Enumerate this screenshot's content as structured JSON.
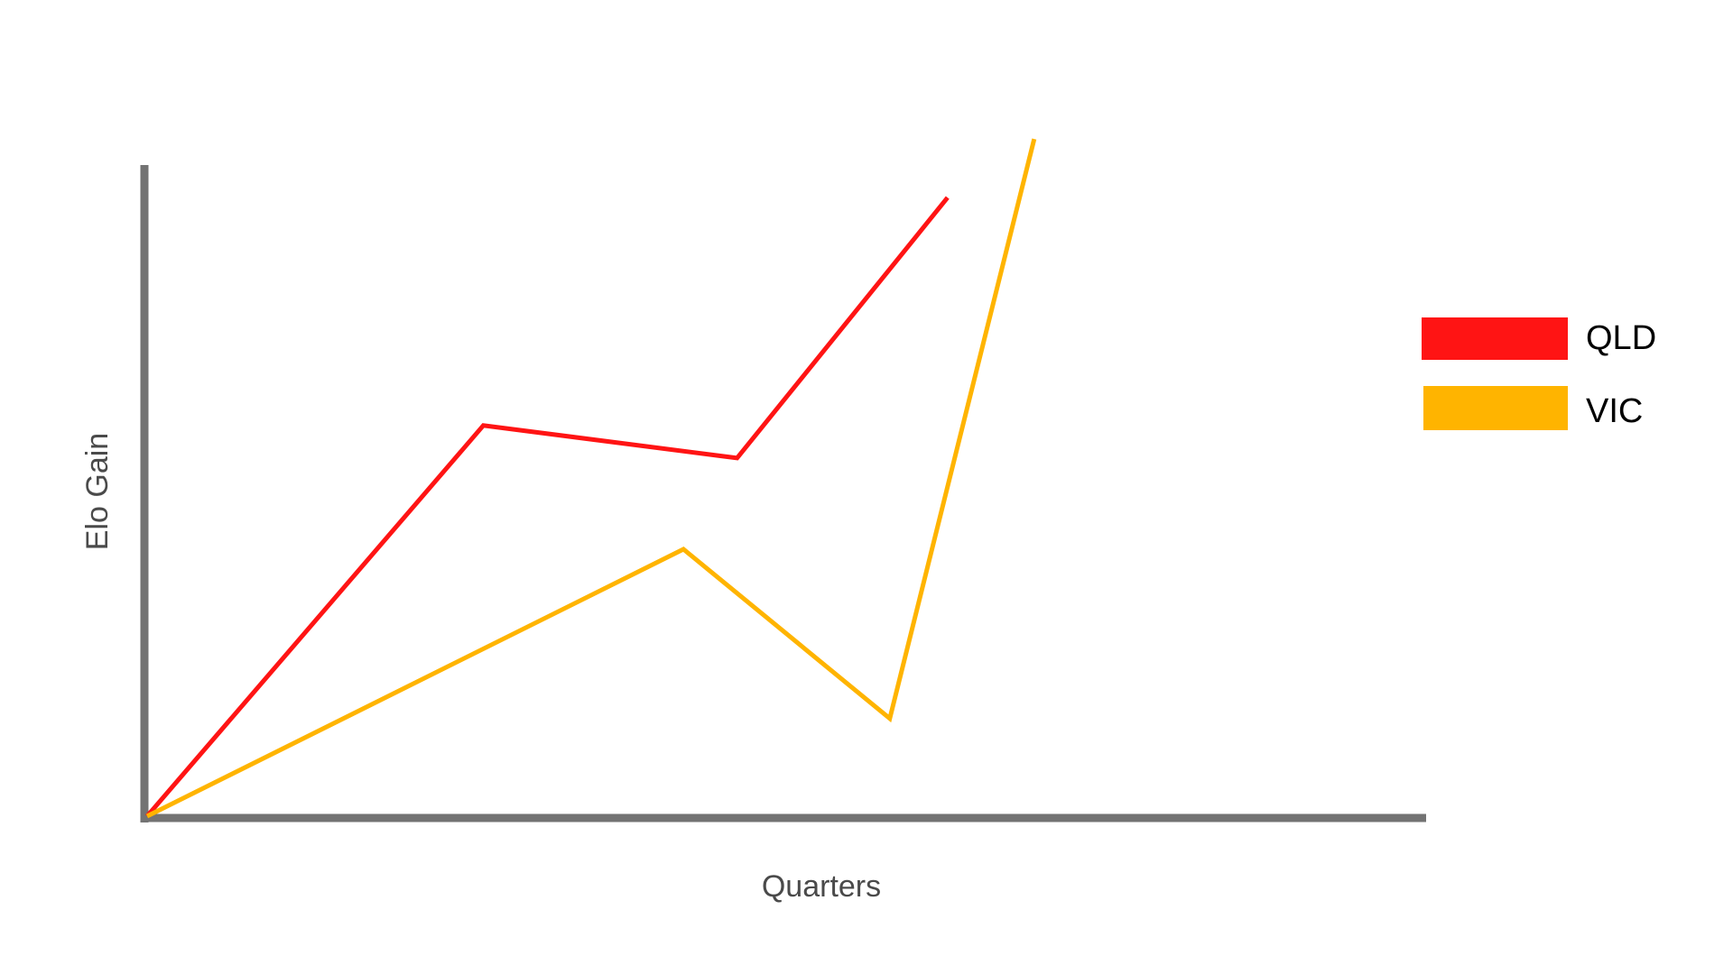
{
  "chart_data": {
    "type": "line",
    "title": "",
    "xlabel": "Quarters",
    "ylabel": "Elo Gain",
    "x": [
      0,
      1,
      2,
      3,
      4
    ],
    "xlim": [
      0,
      6.2
    ],
    "ylim": [
      0,
      100
    ],
    "grid": false,
    "legend_position": "right",
    "series": [
      {
        "name": "QLD",
        "color": "#ff1414",
        "x": [
          0,
          1.63,
          2.86,
          3.88
        ],
        "values": [
          0,
          60,
          55,
          95
        ]
      },
      {
        "name": "VIC",
        "color": "#ffb400",
        "x": [
          0,
          2.6,
          3.6,
          4.3
        ],
        "values": [
          0,
          41,
          15,
          104
        ]
      }
    ]
  }
}
